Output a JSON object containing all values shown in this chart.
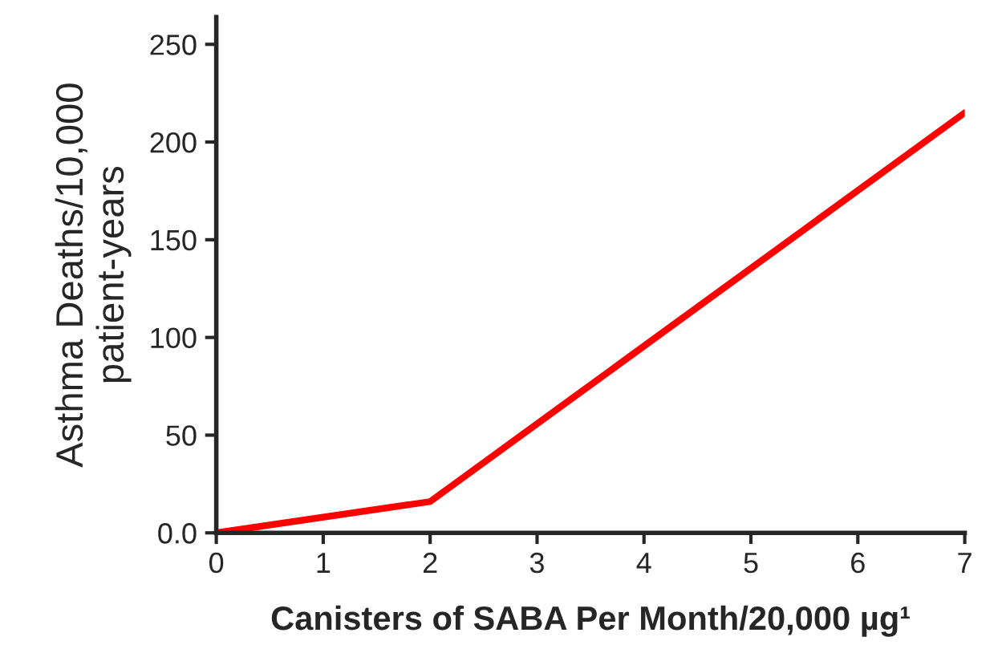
{
  "chart_data": {
    "type": "line",
    "xlabel": "Canisters of SABA Per Month/20,000 µg¹",
    "ylabel": "Asthma Deaths/10,000\npatient-years",
    "x": [
      0,
      2,
      7
    ],
    "series": [
      {
        "color": "#ff0000",
        "values": [
          0,
          16,
          215
        ]
      }
    ],
    "xlim": [
      0,
      7
    ],
    "xticks": [
      0,
      1,
      2,
      3,
      4,
      5,
      6,
      7
    ],
    "ylim": [
      0,
      264
    ],
    "yticks": [
      {
        "value": 0,
        "label": "0.0"
      },
      50,
      100,
      150,
      200,
      250
    ],
    "grid": false,
    "legend": false,
    "marker": "none",
    "line_style": "solid"
  }
}
